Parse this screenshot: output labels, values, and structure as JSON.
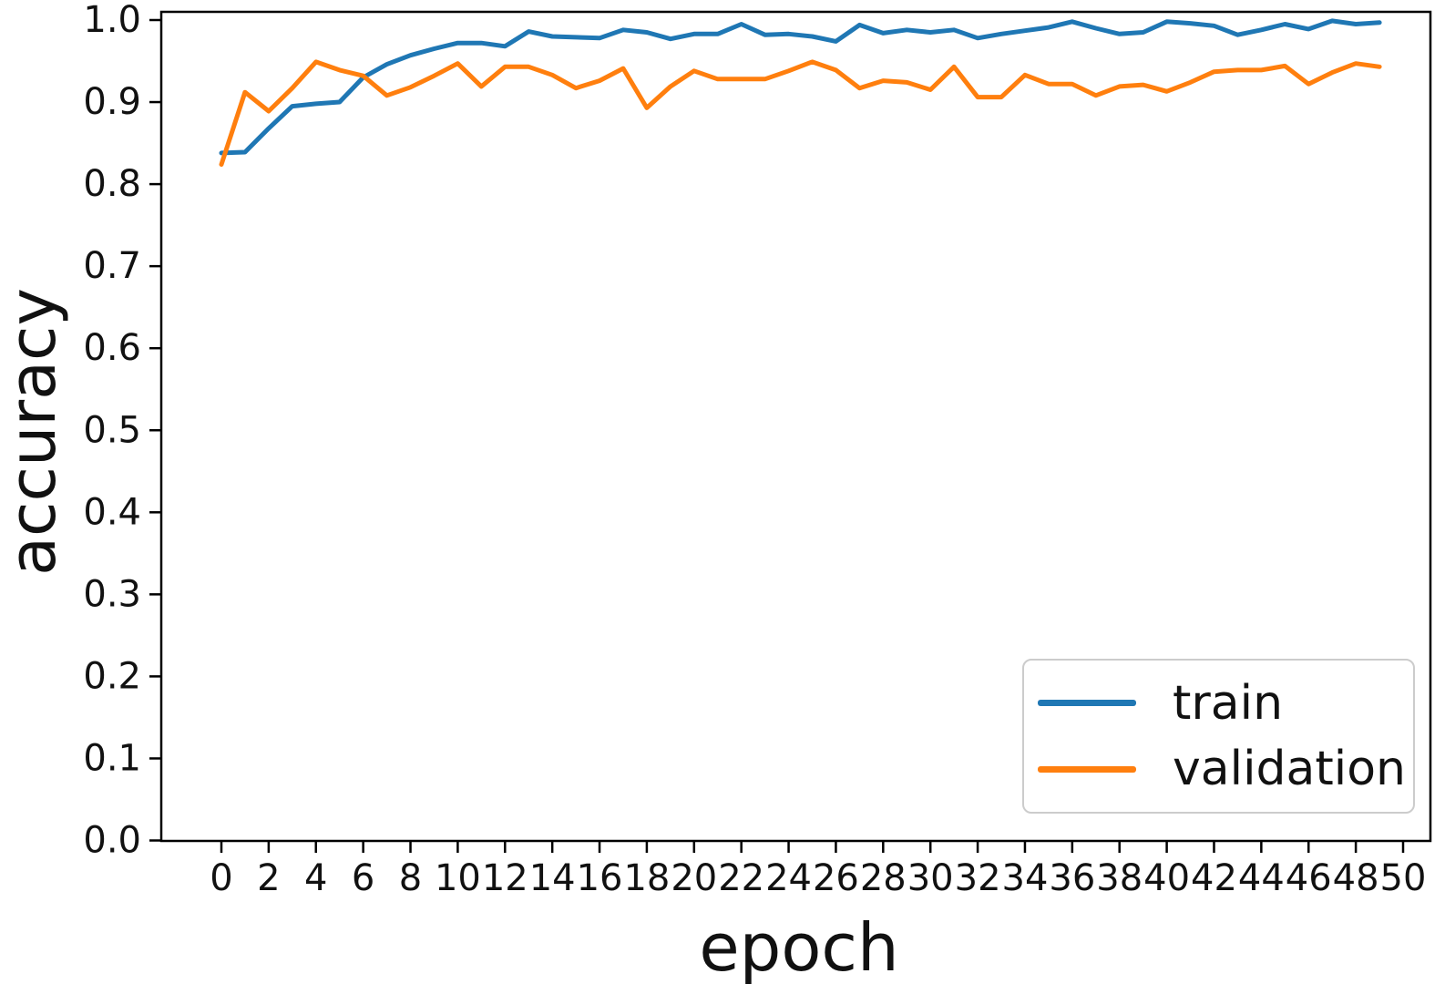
{
  "chart_data": {
    "type": "line",
    "title": "",
    "xlabel": "epoch",
    "ylabel": "accuracy",
    "x": [
      0,
      1,
      2,
      3,
      4,
      5,
      6,
      7,
      8,
      9,
      10,
      11,
      12,
      13,
      14,
      15,
      16,
      17,
      18,
      19,
      20,
      21,
      22,
      23,
      24,
      25,
      26,
      27,
      28,
      29,
      30,
      31,
      32,
      33,
      34,
      35,
      36,
      37,
      38,
      39,
      40,
      41,
      42,
      43,
      44,
      45,
      46,
      47,
      48,
      49
    ],
    "series": [
      {
        "name": "train",
        "color": "#1f77b4",
        "values": [
          0.838,
          0.839,
          0.868,
          0.895,
          0.898,
          0.9,
          0.93,
          0.946,
          0.957,
          0.965,
          0.972,
          0.972,
          0.968,
          0.986,
          0.98,
          0.979,
          0.978,
          0.988,
          0.985,
          0.977,
          0.983,
          0.983,
          0.995,
          0.982,
          0.983,
          0.98,
          0.974,
          0.994,
          0.984,
          0.988,
          0.985,
          0.988,
          0.978,
          0.983,
          0.987,
          0.991,
          0.998,
          0.99,
          0.983,
          0.985,
          0.998,
          0.996,
          0.993,
          0.982,
          0.988,
          0.995,
          0.989,
          0.999,
          0.995,
          0.997
        ]
      },
      {
        "name": "validation",
        "color": "#ff7f0e",
        "values": [
          0.824,
          0.912,
          0.889,
          0.917,
          0.949,
          0.939,
          0.932,
          0.908,
          0.918,
          0.932,
          0.947,
          0.919,
          0.943,
          0.943,
          0.933,
          0.917,
          0.926,
          0.941,
          0.893,
          0.919,
          0.938,
          0.928,
          0.928,
          0.928,
          0.938,
          0.949,
          0.939,
          0.917,
          0.926,
          0.924,
          0.915,
          0.943,
          0.906,
          0.906,
          0.933,
          0.922,
          0.922,
          0.908,
          0.919,
          0.921,
          0.913,
          0.924,
          0.937,
          0.939,
          0.939,
          0.944,
          0.922,
          0.936,
          0.947,
          0.943
        ]
      }
    ],
    "x_ticks": [
      0,
      2,
      4,
      6,
      8,
      10,
      12,
      14,
      16,
      18,
      20,
      22,
      24,
      26,
      28,
      30,
      32,
      34,
      36,
      38,
      40,
      42,
      44,
      46,
      48,
      50
    ],
    "y_ticks": [
      "0.0",
      "0.1",
      "0.2",
      "0.3",
      "0.4",
      "0.5",
      "0.6",
      "0.7",
      "0.8",
      "0.9",
      "1.0"
    ],
    "xlim": [
      -2.5,
      51.4
    ],
    "ylim": [
      0.0,
      1.01
    ],
    "grid": false,
    "legend_position": "lower right",
    "axis_color": "#000000",
    "text_color": "#111111",
    "background_color": "#ffffff"
  }
}
